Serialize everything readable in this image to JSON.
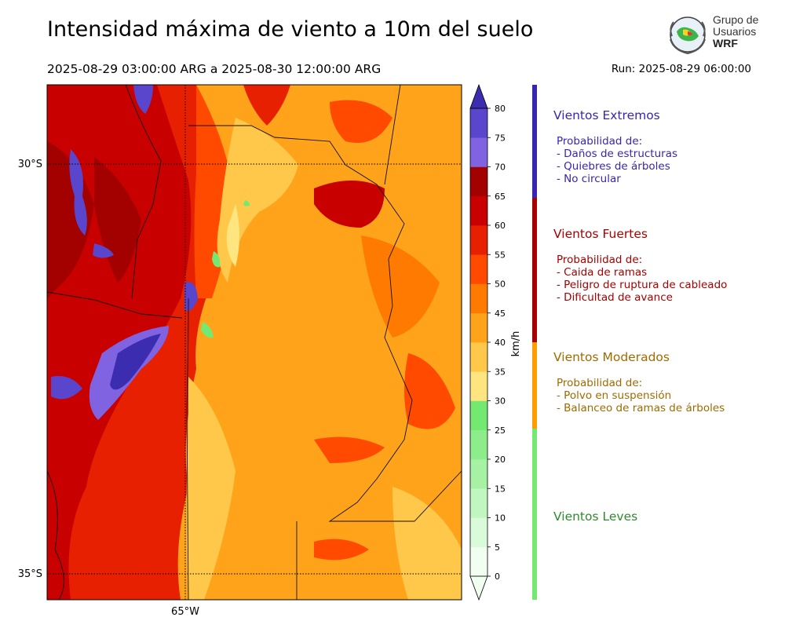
{
  "header": {
    "title": "Intensidad máxima de viento a 10m del suelo",
    "period": "2025-08-29 03:00:00 ARG  a  2025-08-30 12:00:00 ARG",
    "run": "Run: 2025-08-29 06:00:00"
  },
  "logo": {
    "line1": "Grupo de",
    "line2": "Usuarios",
    "line3": "WRF"
  },
  "map": {
    "lat_labels": [
      "30°S",
      "35°S"
    ],
    "lon_labels": [
      "65°W"
    ]
  },
  "colorbar": {
    "unit": "km/h",
    "ticks": [
      0,
      5,
      10,
      15,
      20,
      25,
      30,
      35,
      40,
      45,
      50,
      55,
      60,
      65,
      70,
      75,
      80
    ],
    "colors": [
      "#f0fff0",
      "#d9fbd9",
      "#c1f6c0",
      "#a6f1a4",
      "#8ded8a",
      "#74e972",
      "#ffe57f",
      "#ffc84a",
      "#ffa31a",
      "#ff7a00",
      "#ff4a00",
      "#e62000",
      "#c80000",
      "#a30000",
      "#7f63e0",
      "#5a46cc",
      "#3c2db0"
    ]
  },
  "categories": [
    {
      "title": "Vientos Extremos",
      "color": "#3a25b0",
      "lines": [
        "Probabilidad de:",
        "- Daños de estructuras",
        "- Quiebres de árboles",
        "- No circular"
      ]
    },
    {
      "title": "Vientos Fuertes",
      "color": "#a60000",
      "lines": [
        "Probabilidad de:",
        "- Caida de ramas",
        "- Peligro de ruptura de cableado",
        "- Dificultad de avance"
      ]
    },
    {
      "title": "Vientos Moderados",
      "color": "#a06a00",
      "lines": [
        "Probabilidad de:",
        "- Polvo en suspensión",
        "- Balanceo de ramas de árboles"
      ]
    },
    {
      "title": "Vientos Leves",
      "color": "#2f8a2f",
      "lines": []
    }
  ],
  "category_bar_colors": [
    "#3a25b0",
    "#a60000",
    "#ff9c00",
    "#74e972"
  ]
}
